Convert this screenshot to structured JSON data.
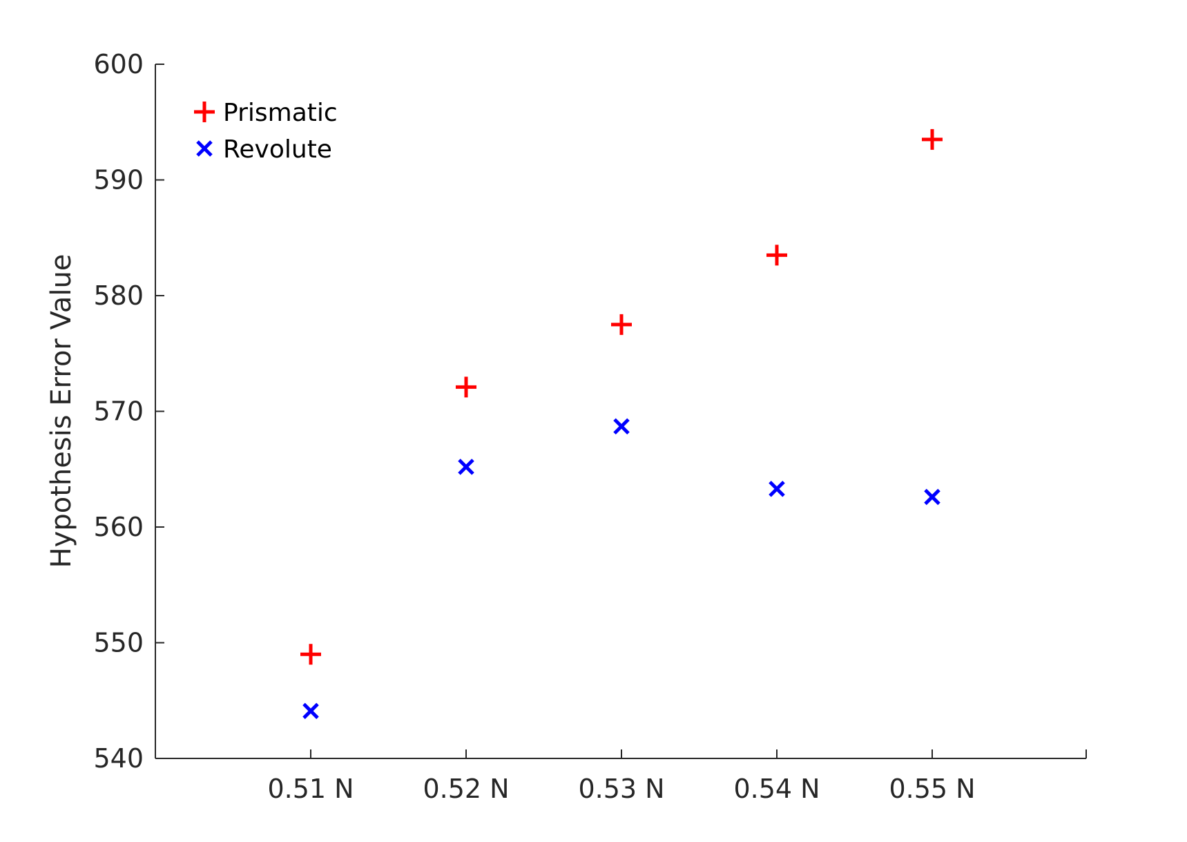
{
  "chart_data": {
    "type": "scatter",
    "title": "",
    "xlabel": "",
    "ylabel": "Hypothesis Error Value",
    "categories": [
      "0.51 N",
      "0.52 N",
      "0.53 N",
      "0.54 N",
      "0.55 N"
    ],
    "ylim": [
      540,
      600
    ],
    "yticks": [
      540,
      550,
      560,
      570,
      580,
      590,
      600
    ],
    "grid": false,
    "legend_position": "top-left",
    "series": [
      {
        "name": "Prismatic",
        "marker": "plus",
        "color": "#ff0000",
        "values": [
          549.0,
          572.1,
          577.5,
          583.5,
          593.5
        ]
      },
      {
        "name": "Revolute",
        "marker": "x",
        "color": "#0000ff",
        "values": [
          544.1,
          565.2,
          568.7,
          563.3,
          562.6
        ]
      }
    ]
  }
}
